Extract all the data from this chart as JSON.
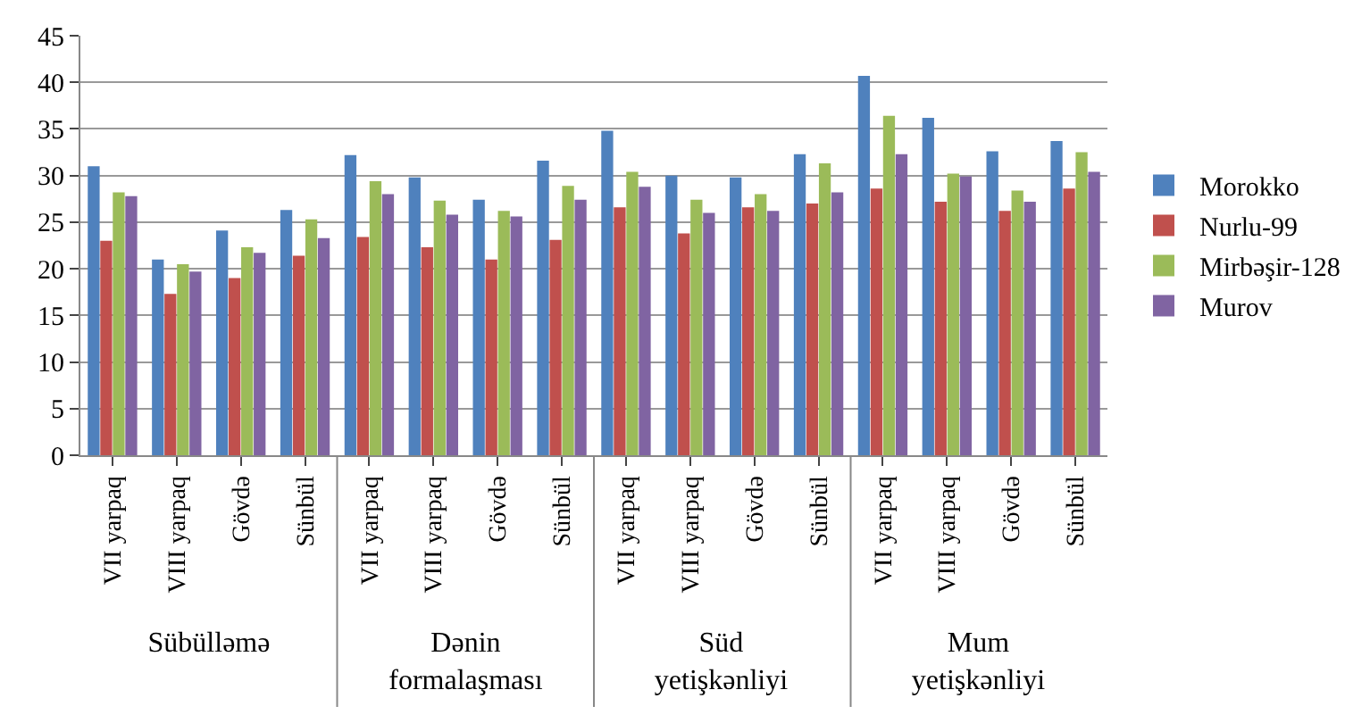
{
  "chart_data": {
    "type": "bar",
    "categories": [
      "VII yarpaq",
      "VIII yarpaq",
      "Gövdə",
      "Sünbül",
      "VII yarpaq",
      "VIII yarpaq",
      "Gövdə",
      "Sünbül",
      "VII yarpaq",
      "VIII yarpaq",
      "Gövdə",
      "Sünbül",
      "VII yarpaq",
      "VIII yarpaq",
      "Gövdə",
      "Sünbül"
    ],
    "series": [
      {
        "name": "Morokko",
        "color": "#4f81bd",
        "values": [
          31,
          21,
          24.1,
          26.3,
          32.2,
          29.8,
          27.4,
          31.6,
          34.8,
          30,
          29.8,
          32.3,
          40.7,
          36.2,
          32.6,
          33.7
        ]
      },
      {
        "name": "Nurlu-99",
        "color": "#c0504d",
        "values": [
          23,
          17.3,
          19,
          21.4,
          23.4,
          22.3,
          21,
          23.1,
          26.6,
          23.8,
          26.6,
          27,
          28.6,
          27.2,
          26.2,
          28.6
        ]
      },
      {
        "name": "Mirbəşir-128",
        "color": "#9bbb59",
        "values": [
          28.2,
          20.5,
          22.3,
          25.3,
          29.4,
          27.3,
          26.2,
          28.9,
          30.4,
          27.4,
          28,
          31.3,
          36.4,
          30.2,
          28.4,
          32.5
        ]
      },
      {
        "name": "Murov",
        "color": "#8064a2",
        "values": [
          27.8,
          19.7,
          21.7,
          23.3,
          28,
          25.8,
          25.6,
          27.4,
          28.8,
          26,
          26.2,
          28.2,
          32.3,
          29.9,
          27.2,
          30.4
        ]
      }
    ],
    "annotations": [
      "Sübülləmə",
      "Dənin formalaşması",
      "Süd yetişkənliyi",
      "Mum yetişkənliyi"
    ],
    "ylim": [
      0,
      45
    ],
    "yticks": [
      0,
      5,
      10,
      15,
      20,
      25,
      30,
      35,
      40,
      45
    ],
    "grid": "y",
    "legend": "right"
  }
}
